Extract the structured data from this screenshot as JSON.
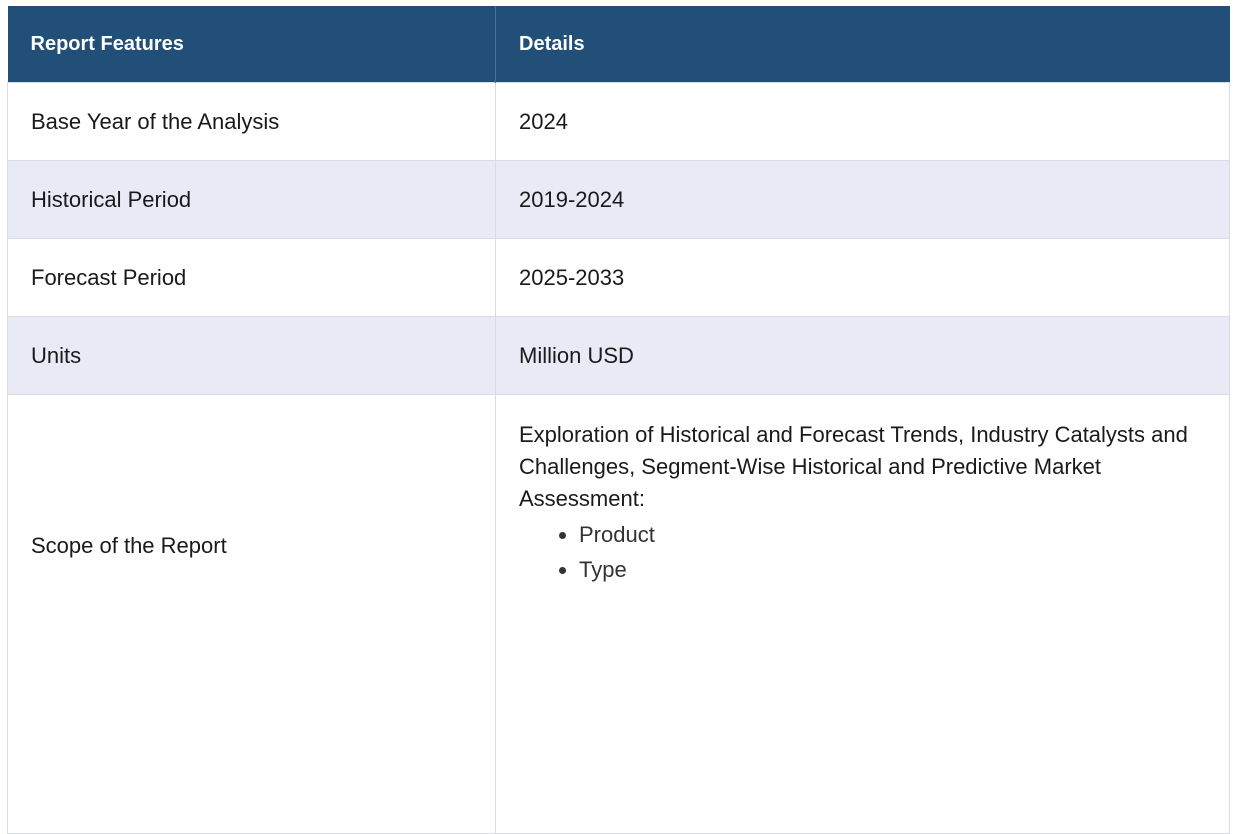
{
  "table": {
    "headers": [
      "Report Features",
      "Details"
    ],
    "rows": [
      {
        "feature": "Base Year of the Analysis",
        "detail": "2024"
      },
      {
        "feature": "Historical Period",
        "detail": "2019-2024"
      },
      {
        "feature": "Forecast Period",
        "detail": "2025-2033"
      },
      {
        "feature": "Units",
        "detail": "Million USD"
      }
    ],
    "scope": {
      "feature": "Scope of the Report",
      "detail": "Exploration of Historical and Forecast Trends, Industry Catalysts and Challenges, Segment-Wise Historical and Predictive Market Assessment:",
      "items": [
        "Product",
        "Type"
      ]
    }
  },
  "colors": {
    "header_bg": "#214f78",
    "header_text": "#ffffff",
    "alt_row_bg": "#e8eaf6"
  }
}
